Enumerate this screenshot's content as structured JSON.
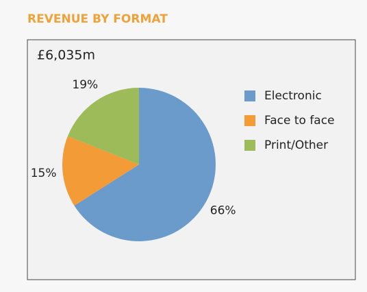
{
  "chart_data": {
    "type": "pie",
    "title": "REVENUE BY FORMAT",
    "subtitle": "£6,035m",
    "categories": [
      "Electronic",
      "Face to face",
      "Print/Other"
    ],
    "values": [
      66,
      15,
      19
    ],
    "value_labels": [
      "66%",
      "15%",
      "19%"
    ],
    "colors": [
      "#6b9bcb",
      "#f39b36",
      "#9dbb59"
    ],
    "legend": "right"
  }
}
